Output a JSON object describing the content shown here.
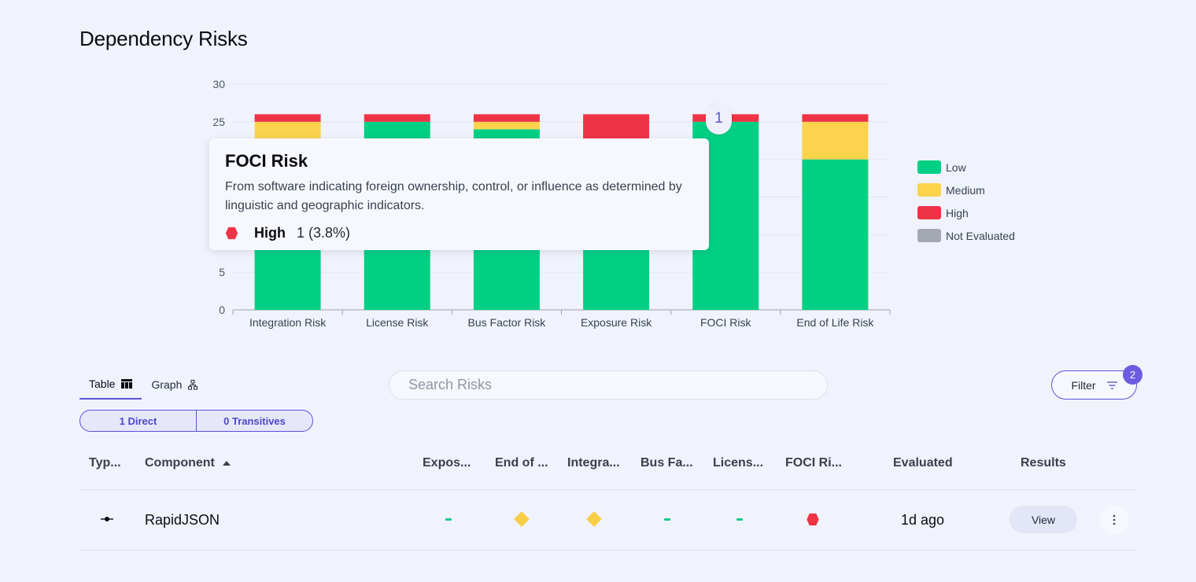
{
  "page": {
    "title": "Dependency Risks"
  },
  "chart_data": {
    "type": "bar",
    "stacked": true,
    "categories": [
      "Integration Risk",
      "License Risk",
      "Bus Factor Risk",
      "Exposure Risk",
      "FOCI Risk",
      "End of Life Risk"
    ],
    "series": [
      {
        "name": "Low",
        "color": "#00d084",
        "values": [
          20,
          25,
          24,
          20,
          25,
          20
        ]
      },
      {
        "name": "Medium",
        "color": "#fbd34d",
        "values": [
          5,
          0,
          1,
          0,
          0,
          5
        ]
      },
      {
        "name": "High",
        "color": "#ef3347",
        "values": [
          1,
          1,
          1,
          6,
          1,
          1
        ]
      },
      {
        "name": "Not Evaluated",
        "color": "#a3a8b3",
        "values": [
          0,
          0,
          0,
          0,
          0,
          0
        ]
      }
    ],
    "ylim": [
      0,
      30
    ],
    "yticks": [
      0,
      5,
      25,
      30
    ],
    "grid": true,
    "legend_position": "right",
    "annotation": "1"
  },
  "tooltip": {
    "title": "FOCI Risk",
    "description": "From software indicating foreign ownership, control, or influence as determined by linguistic and geographic indicators.",
    "level": "High",
    "count": "1 (3.8%)",
    "level_color": "#ef3347"
  },
  "tabs": [
    {
      "label": "Table",
      "icon": "table-icon"
    },
    {
      "label": "Graph",
      "icon": "graph-icon"
    }
  ],
  "segments": [
    {
      "label": "1 Direct"
    },
    {
      "label": "0 Transitives"
    }
  ],
  "search": {
    "placeholder": "Search Risks"
  },
  "filter": {
    "label": "Filter",
    "badge": "2"
  },
  "table": {
    "headers": {
      "type": "Typ...",
      "component": "Component",
      "exposure": "Expos...",
      "end_of_life": "End of ...",
      "integration": "Integra...",
      "bus_factor": "Bus Fa...",
      "license": "Licens...",
      "foci": "FOCI Ri...",
      "evaluated": "Evaluated",
      "results": "Results"
    },
    "rows": [
      {
        "type_icon": "commit-icon",
        "component": "RapidJSON",
        "exposure": "low",
        "end_of_life": "medium",
        "integration": "medium",
        "bus_factor": "low",
        "license": "low",
        "foci": "high",
        "evaluated": "1d ago",
        "view_label": "View"
      }
    ]
  }
}
